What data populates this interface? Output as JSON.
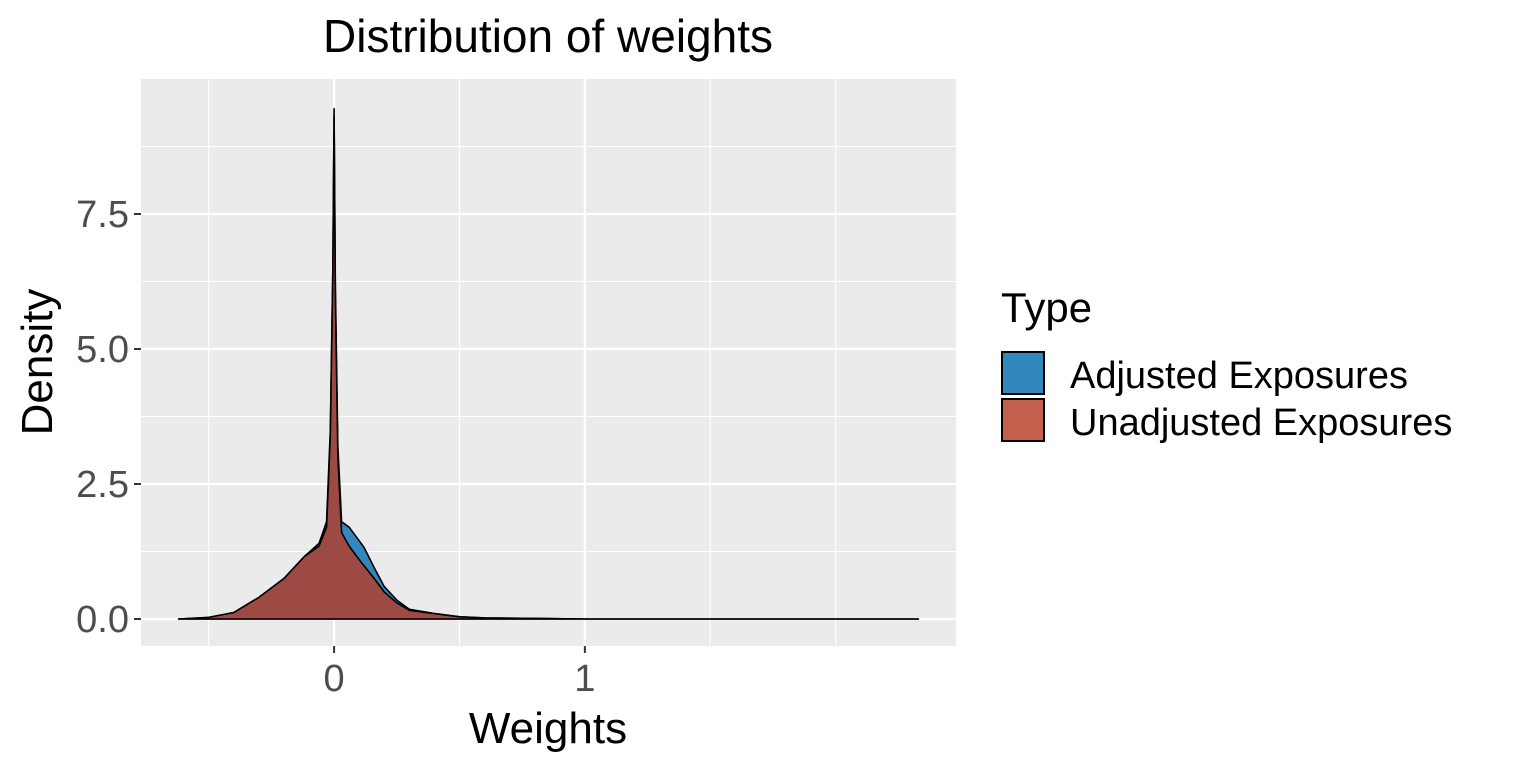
{
  "chart_data": {
    "type": "area",
    "title": "Distribution of weights",
    "xlabel": "Weights",
    "ylabel": "Density",
    "xlim": [
      -0.77,
      2.48
    ],
    "ylim": [
      -0.5,
      10.0
    ],
    "x_ticks": [
      0,
      1
    ],
    "x_tick_labels": [
      "0",
      "1"
    ],
    "x_minor_ticks": [
      -0.5,
      0.5,
      1.5,
      2.0
    ],
    "y_ticks": [
      0.0,
      2.5,
      5.0,
      7.5
    ],
    "y_tick_labels": [
      "0.0",
      "2.5",
      "5.0",
      "7.5"
    ],
    "y_minor_ticks": [
      1.25,
      3.75,
      6.25,
      8.75
    ],
    "grid": true,
    "legend": {
      "title": "Type",
      "position": "right"
    },
    "series": [
      {
        "name": "Adjusted Exposures",
        "color": "#3288BD",
        "x": [
          -0.62,
          -0.5,
          -0.4,
          -0.3,
          -0.2,
          -0.12,
          -0.06,
          -0.03,
          -0.015,
          -0.005,
          0.0,
          0.005,
          0.015,
          0.03,
          0.06,
          0.1,
          0.12,
          0.16,
          0.2,
          0.25,
          0.3,
          0.4,
          0.5,
          0.6,
          0.8,
          1.0,
          1.5,
          2.0,
          2.33
        ],
        "y": [
          0.0,
          0.03,
          0.12,
          0.4,
          0.75,
          1.15,
          1.4,
          1.8,
          3.5,
          6.5,
          9.45,
          6.2,
          3.2,
          1.8,
          1.7,
          1.45,
          1.32,
          0.95,
          0.6,
          0.35,
          0.18,
          0.1,
          0.04,
          0.02,
          0.01,
          0.0,
          0.0,
          0.0,
          0.0
        ]
      },
      {
        "name": "Unadjusted Exposures",
        "color": "#C5604F",
        "x": [
          -0.62,
          -0.5,
          -0.4,
          -0.3,
          -0.2,
          -0.12,
          -0.06,
          -0.03,
          -0.015,
          -0.005,
          0.0,
          0.005,
          0.015,
          0.03,
          0.06,
          0.1,
          0.16,
          0.2,
          0.25,
          0.3,
          0.4,
          0.5,
          0.6,
          0.8,
          1.0,
          1.5,
          2.0,
          2.33
        ],
        "y": [
          0.0,
          0.03,
          0.12,
          0.4,
          0.75,
          1.15,
          1.35,
          1.7,
          3.4,
          6.4,
          9.3,
          6.0,
          3.0,
          1.6,
          1.35,
          1.1,
          0.75,
          0.5,
          0.3,
          0.16,
          0.1,
          0.04,
          0.02,
          0.01,
          0.0,
          0.0,
          0.0,
          0.0
        ]
      }
    ]
  }
}
